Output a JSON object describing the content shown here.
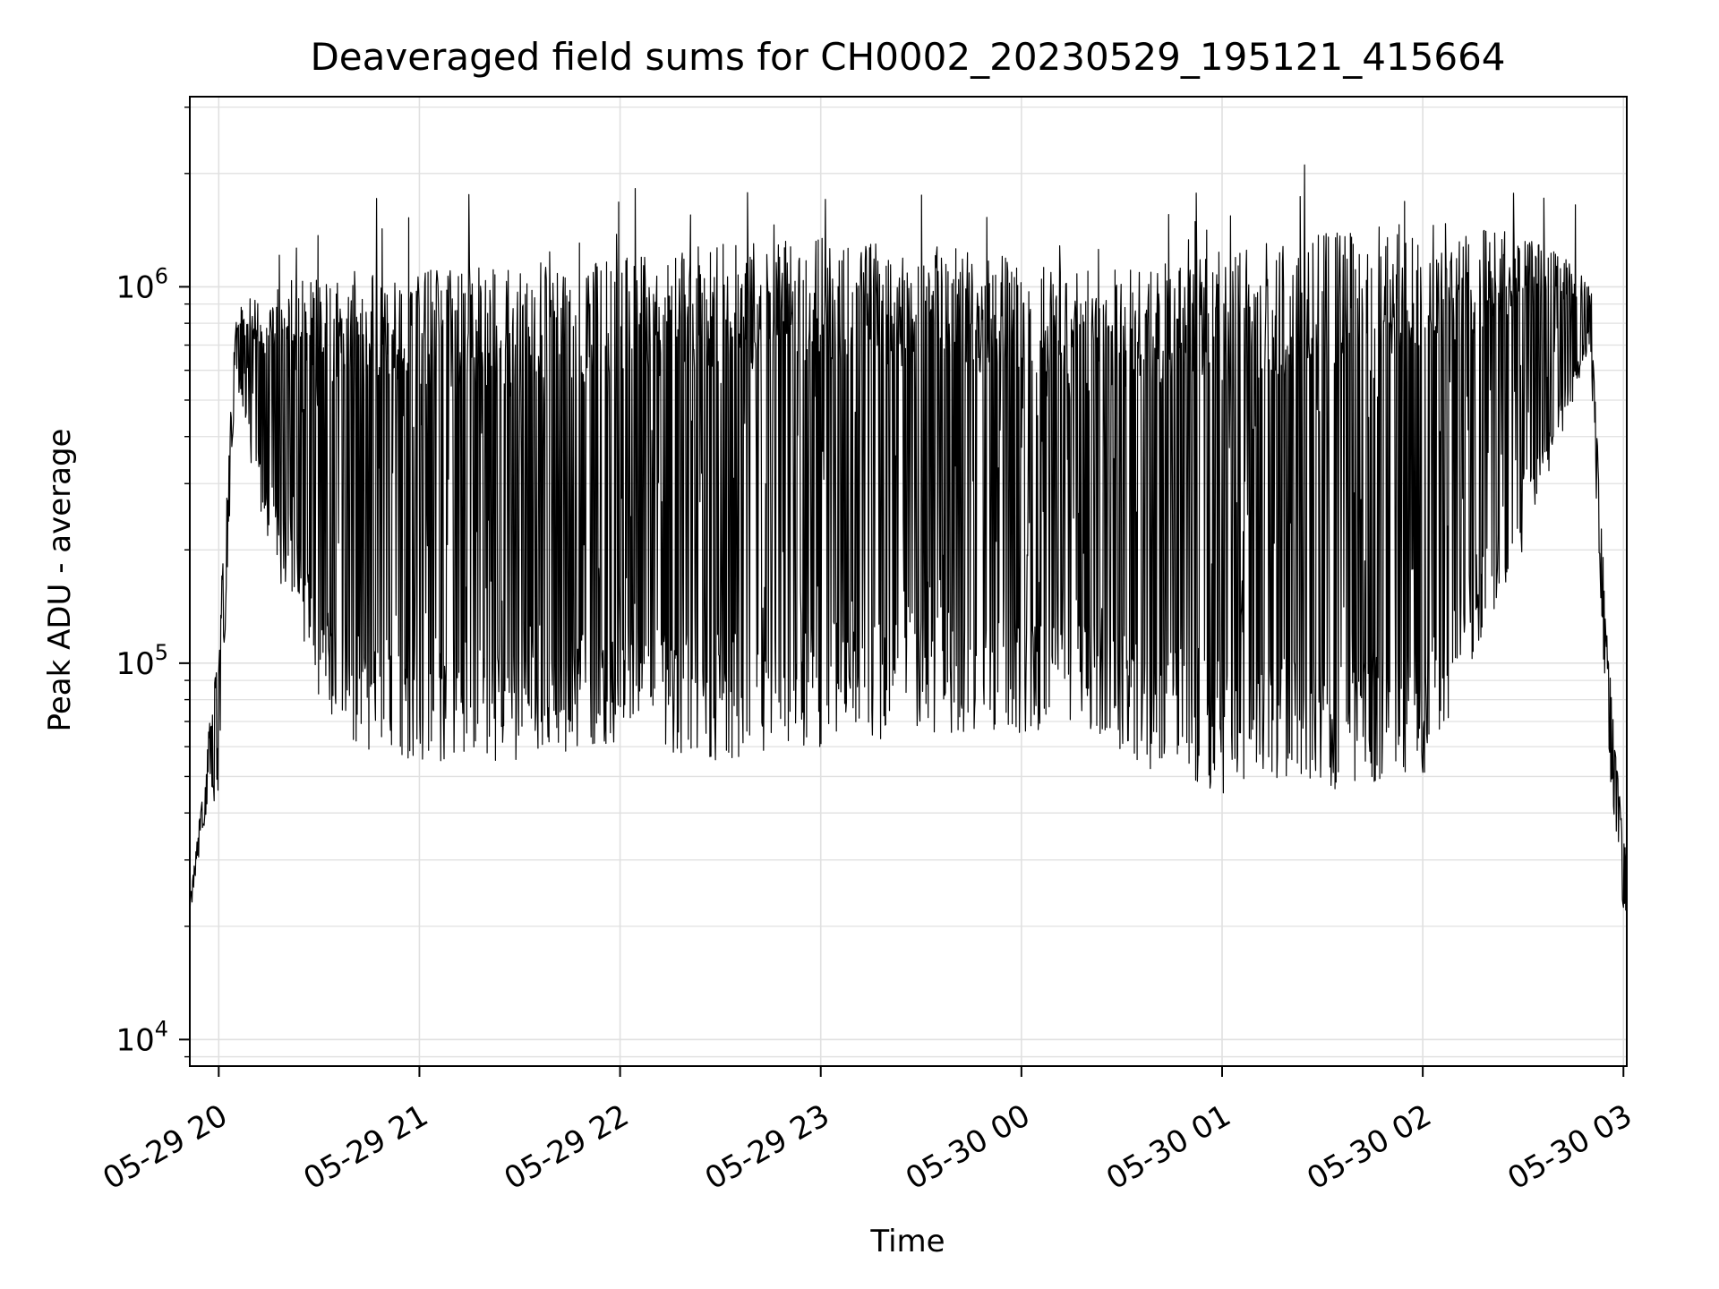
{
  "chart_data": {
    "type": "line",
    "title": "Deaveraged field sums for CH0002_20230529_195121_415664",
    "xlabel": "Time",
    "ylabel": "Peak ADU - average",
    "yscale": "log",
    "grid": true,
    "line_color": "#000000",
    "grid_color": "#e0e0e0",
    "xlim": [
      "05-29 19:51:21",
      "05-30 03:01"
    ],
    "ylim": [
      8500,
      3200000
    ],
    "x_ticks": [
      "05-29 20",
      "05-29 21",
      "05-29 22",
      "05-29 23",
      "05-30 00",
      "05-30 01",
      "05-30 02",
      "05-30 03"
    ],
    "y_ticks": [
      {
        "value": 10000,
        "base": "10",
        "exp": "4"
      },
      {
        "value": 100000,
        "base": "10",
        "exp": "5"
      },
      {
        "value": 1000000,
        "base": "10",
        "exp": "6"
      }
    ],
    "envelope_description_points": {
      "x": [
        "05-29 19:51",
        "05-29 19:55",
        "05-29 20:00",
        "05-29 20:05",
        "05-29 20:08",
        "05-29 20:15",
        "05-29 20:20",
        "05-29 20:30",
        "05-29 20:40",
        "05-29 21:00",
        "05-29 21:30",
        "05-29 22:00",
        "05-29 22:30",
        "05-29 23:00",
        "05-29 23:30",
        "05-30 00:00",
        "05-30 00:20",
        "05-30 00:40",
        "05-30 01:00",
        "05-30 01:30",
        "05-30 02:00",
        "05-30 02:30",
        "05-30 02:45",
        "05-30 02:50",
        "05-30 02:55",
        "05-30 03:00"
      ],
      "upper": [
        22000,
        45000,
        120000,
        800000,
        1000000,
        900000,
        1100000,
        1100000,
        1100000,
        1150000,
        1150000,
        1200000,
        1300000,
        1350000,
        1300000,
        1200000,
        1100000,
        1150000,
        1250000,
        1400000,
        1500000,
        1400000,
        1150000,
        1000000,
        120000,
        35000
      ],
      "lower": [
        20000,
        35000,
        45000,
        600000,
        400000,
        200000,
        150000,
        80000,
        60000,
        55000,
        55000,
        60000,
        55000,
        60000,
        65000,
        65000,
        65000,
        50000,
        45000,
        45000,
        50000,
        200000,
        500000,
        700000,
        60000,
        22000
      ]
    }
  }
}
